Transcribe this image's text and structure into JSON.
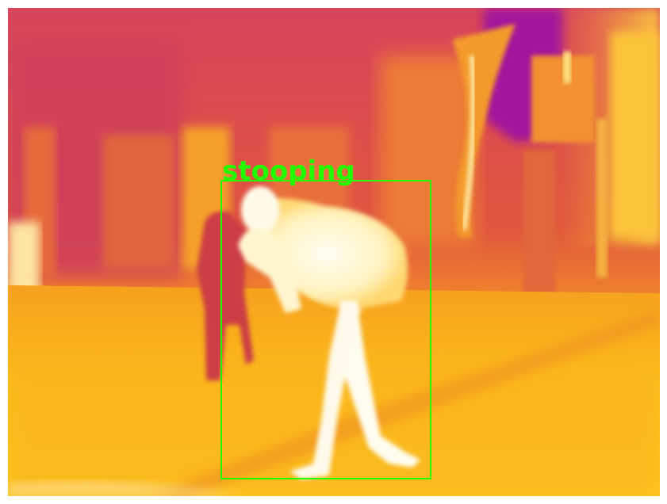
{
  "image": {
    "palette": {
      "bg_magenta": "#d2445e",
      "bg_purple": "#a0189a",
      "bg_orange": "#f08a2a",
      "ground_yellow": "#fbbf1a",
      "hot_white": "#fffbe6",
      "warm_pale": "#ffe7a0"
    }
  },
  "detection": {
    "label": "stooping",
    "color": "#22ff00"
  }
}
